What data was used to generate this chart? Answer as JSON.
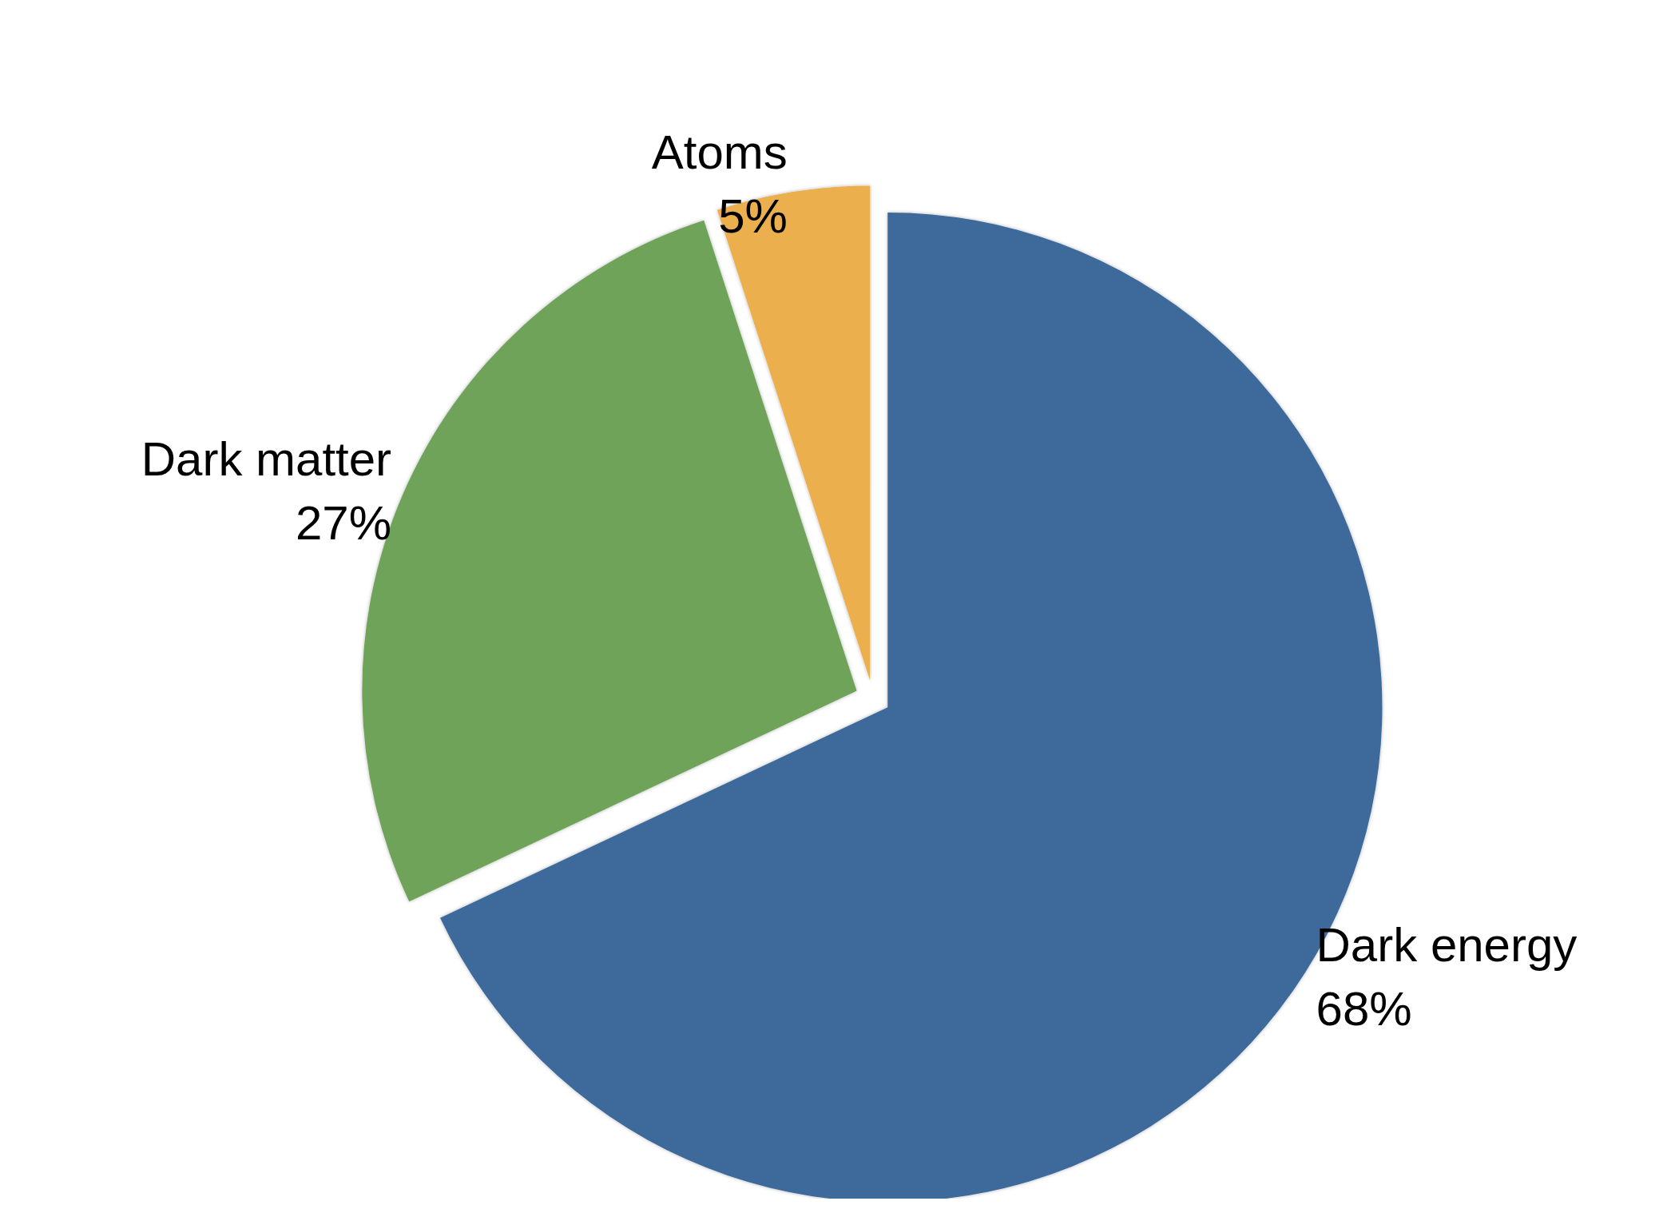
{
  "chart_data": {
    "type": "pie",
    "categories": [
      "Dark energy",
      "Dark matter",
      "Atoms"
    ],
    "values": [
      68,
      27,
      5
    ],
    "colors": [
      "#3d6b9b",
      "#70a35a",
      "#ecaf4e"
    ],
    "value_labels": [
      "68%",
      "27%",
      "5%"
    ],
    "legend": false
  }
}
